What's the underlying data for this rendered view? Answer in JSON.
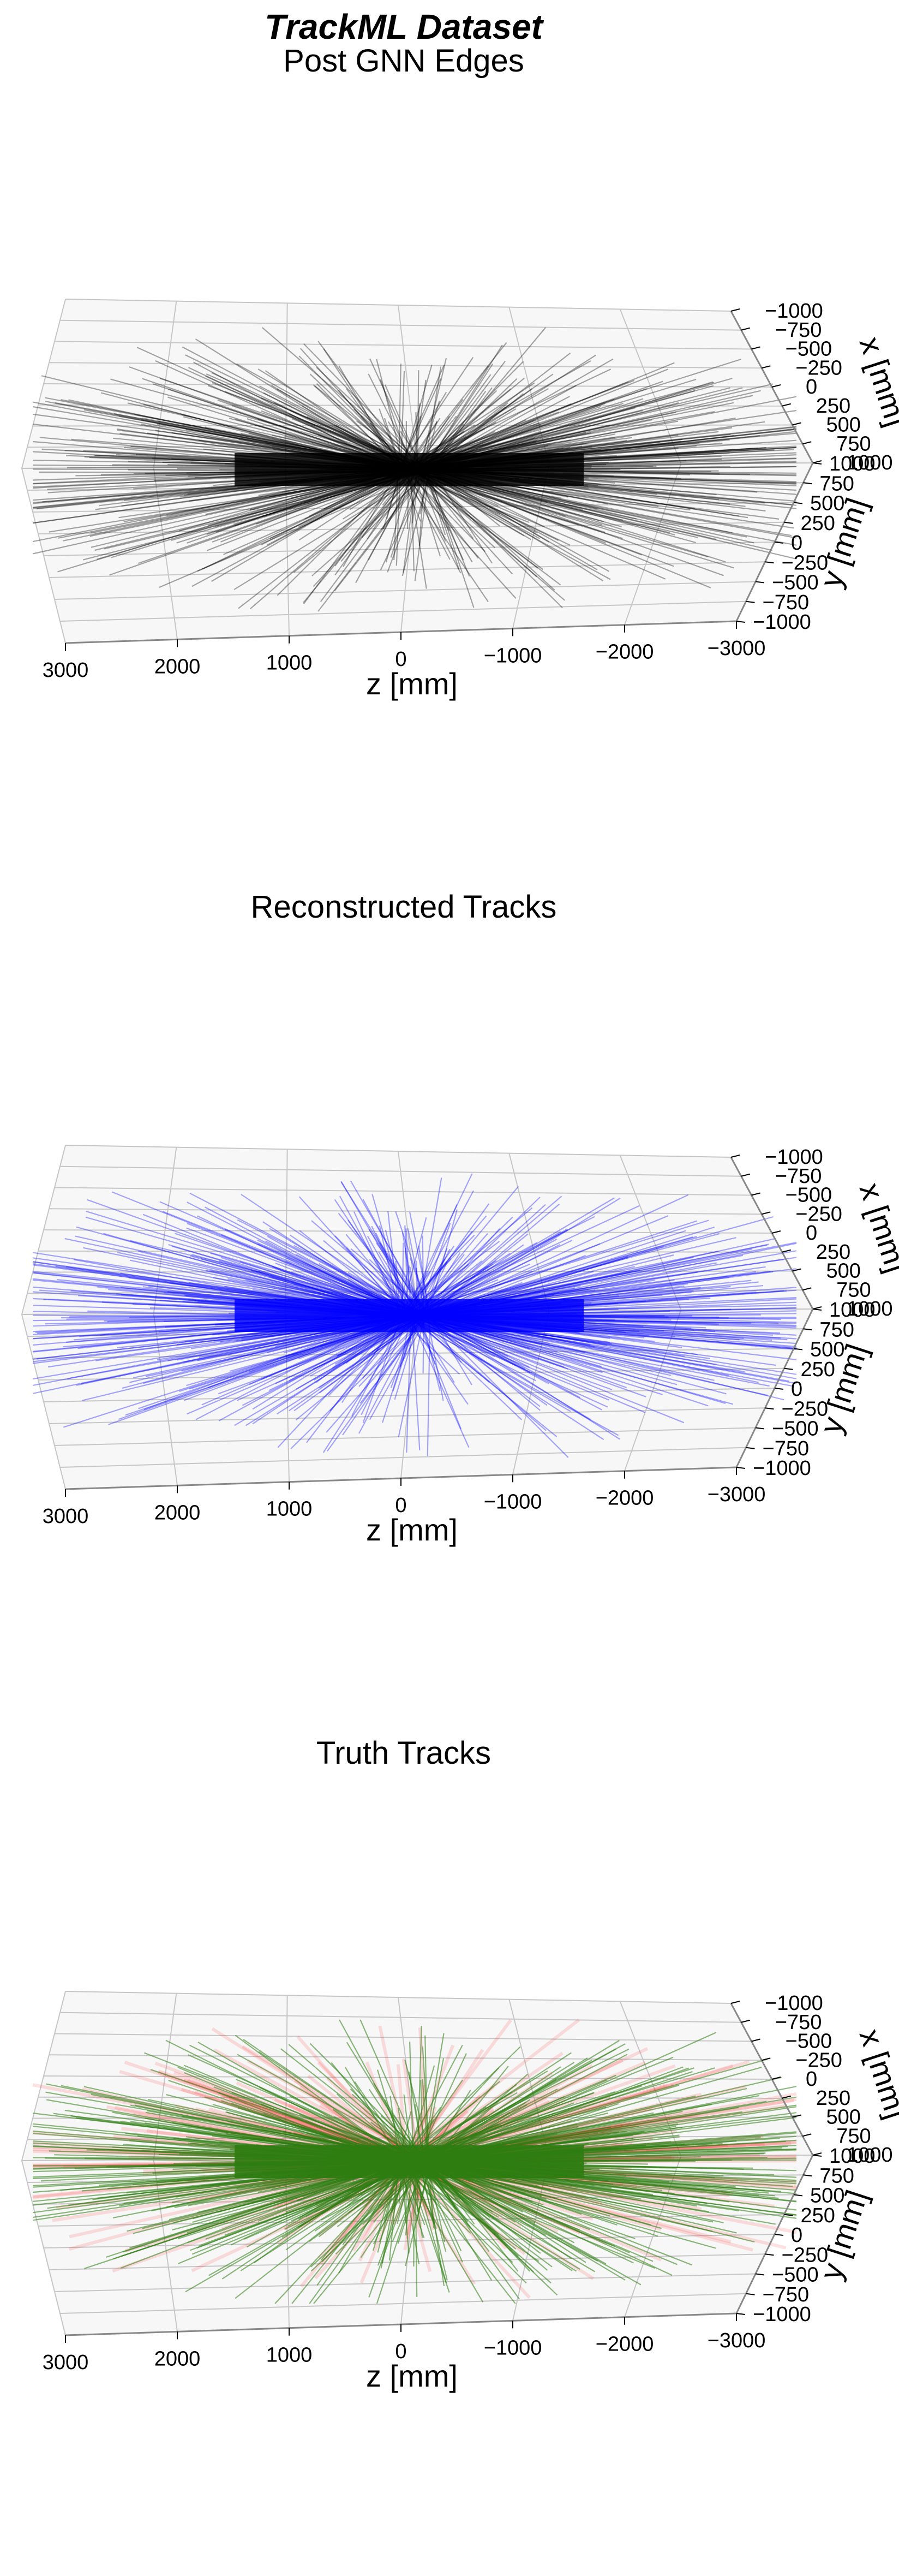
{
  "title": "TrackML Dataset",
  "chart_data": [
    {
      "type": "scatter",
      "title": "Post GNN Edges",
      "xlabel": "z [mm]",
      "ylabel_x": "x [mm]",
      "ylabel_y": "y [mm]",
      "zlim": [
        -3000,
        3000
      ],
      "xlim": [
        -1000,
        1000
      ],
      "ylim": [
        -1000,
        1000
      ],
      "z_ticks": [
        "3000",
        "2000",
        "1000",
        "0",
        "−1000",
        "−2000",
        "−3000"
      ],
      "x_ticks": [
        "−1000",
        "−750",
        "−500",
        "−250",
        "0",
        "250",
        "500",
        "750",
        "1000"
      ],
      "y_ticks": [
        "1000",
        "750",
        "500",
        "250",
        "0",
        "−250",
        "−500",
        "−750",
        "−1000"
      ],
      "grid": true,
      "series": [
        {
          "color": "#000000",
          "opacity": 0.35
        }
      ]
    },
    {
      "type": "scatter",
      "title": "Reconstructed Tracks",
      "xlabel": "z [mm]",
      "ylabel_x": "x [mm]",
      "ylabel_y": "y [mm]",
      "zlim": [
        -3000,
        3000
      ],
      "xlim": [
        -1000,
        1000
      ],
      "ylim": [
        -1000,
        1000
      ],
      "z_ticks": [
        "3000",
        "2000",
        "1000",
        "0",
        "−1000",
        "−2000",
        "−3000"
      ],
      "x_ticks": [
        "−1000",
        "−750",
        "−500",
        "−250",
        "0",
        "250",
        "500",
        "750",
        "1000"
      ],
      "y_ticks": [
        "1000",
        "750",
        "500",
        "250",
        "0",
        "−250",
        "−500",
        "−750",
        "−1000"
      ],
      "grid": true,
      "series": [
        {
          "color": "#0000ff",
          "opacity": 0.35
        }
      ]
    },
    {
      "type": "scatter",
      "title": "Truth Tracks",
      "xlabel": "z [mm]",
      "ylabel_x": "x [mm]",
      "ylabel_y": "y [mm]",
      "zlim": [
        -3000,
        3000
      ],
      "xlim": [
        -1000,
        1000
      ],
      "ylim": [
        -1000,
        1000
      ],
      "z_ticks": [
        "3000",
        "2000",
        "1000",
        "0",
        "−1000",
        "−2000",
        "−3000"
      ],
      "x_ticks": [
        "−1000",
        "−750",
        "−500",
        "−250",
        "0",
        "250",
        "500",
        "750",
        "1000"
      ],
      "y_ticks": [
        "1000",
        "750",
        "500",
        "250",
        "0",
        "−250",
        "−500",
        "−750",
        "−1000"
      ],
      "grid": true,
      "series": [
        {
          "color": "#ff0000",
          "opacity": 0.12
        },
        {
          "color": "#2e7d12",
          "opacity": 0.55
        }
      ]
    }
  ]
}
